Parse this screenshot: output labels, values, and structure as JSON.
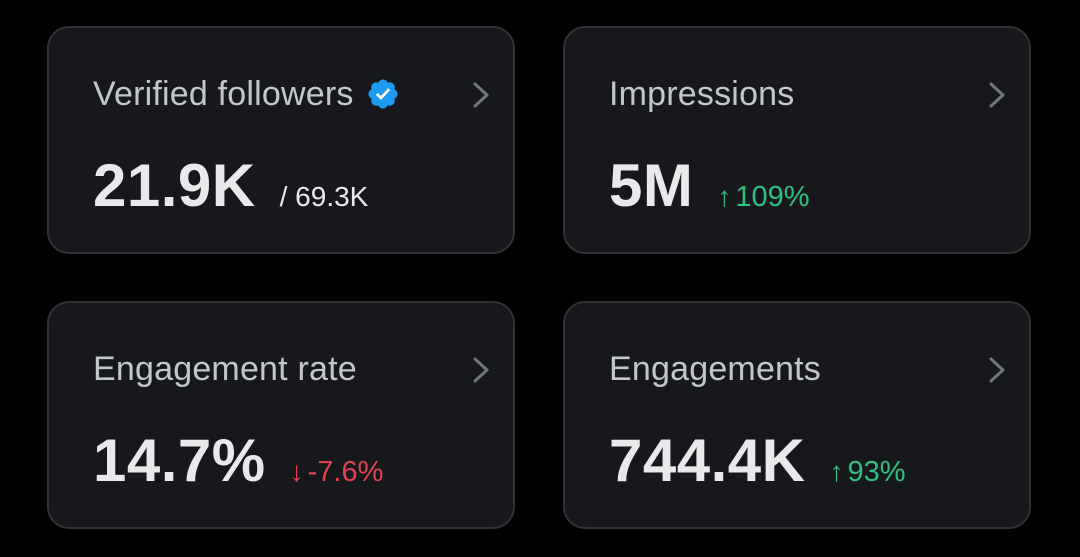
{
  "colors": {
    "background": "#000000",
    "card": "#16181c",
    "card_border": "#2f3336",
    "title": "#c4c7ca",
    "value": "#e7e9ea",
    "positive": "#2fbf7f",
    "negative": "#e0424f",
    "verified": "#1d9bf0"
  },
  "cards": [
    {
      "title": "Verified followers",
      "value": "21.9K",
      "sub": "/ 69.3K",
      "badge_icon": "verified-badge-icon",
      "chevron_icon": "chevron-right-icon"
    },
    {
      "title": "Impressions",
      "value": "5M",
      "delta_arrow": "↑",
      "delta": "109%",
      "direction": "up",
      "chevron_icon": "chevron-right-icon"
    },
    {
      "title": "Engagement rate",
      "value": "14.7%",
      "delta_arrow": "↓",
      "delta": "-7.6%",
      "direction": "down",
      "chevron_icon": "chevron-right-icon"
    },
    {
      "title": "Engagements",
      "value": "744.4K",
      "delta_arrow": "↑",
      "delta": "93%",
      "direction": "up",
      "chevron_icon": "chevron-right-icon"
    }
  ]
}
